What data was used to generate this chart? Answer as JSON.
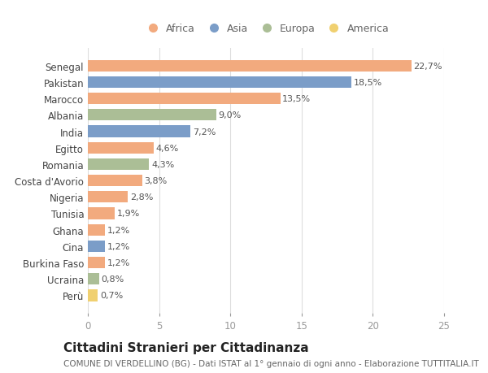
{
  "categories": [
    "Senegal",
    "Pakistan",
    "Marocco",
    "Albania",
    "India",
    "Egitto",
    "Romania",
    "Costa d'Avorio",
    "Nigeria",
    "Tunisia",
    "Ghana",
    "Cina",
    "Burkina Faso",
    "Ucraina",
    "Perù"
  ],
  "values": [
    22.7,
    18.5,
    13.5,
    9.0,
    7.2,
    4.6,
    4.3,
    3.8,
    2.8,
    1.9,
    1.2,
    1.2,
    1.2,
    0.8,
    0.7
  ],
  "labels": [
    "22,7%",
    "18,5%",
    "13,5%",
    "9,0%",
    "7,2%",
    "4,6%",
    "4,3%",
    "3,8%",
    "2,8%",
    "1,9%",
    "1,2%",
    "1,2%",
    "1,2%",
    "0,8%",
    "0,7%"
  ],
  "continents": [
    "Africa",
    "Asia",
    "Africa",
    "Europa",
    "Asia",
    "Africa",
    "Europa",
    "Africa",
    "Africa",
    "Africa",
    "Africa",
    "Asia",
    "Africa",
    "Europa",
    "America"
  ],
  "continent_colors": {
    "Africa": "#F2AA7E",
    "Asia": "#7B9DC8",
    "Europa": "#ABBE96",
    "America": "#F0D070"
  },
  "legend_order": [
    "Africa",
    "Asia",
    "Europa",
    "America"
  ],
  "title": "Cittadini Stranieri per Cittadinanza",
  "subtitle": "COMUNE DI VERDELLINO (BG) - Dati ISTAT al 1° gennaio di ogni anno - Elaborazione TUTTITALIA.IT",
  "xlim": [
    0,
    25
  ],
  "xticks": [
    0,
    5,
    10,
    15,
    20,
    25
  ],
  "background_color": "#ffffff",
  "bar_height": 0.7,
  "label_fontsize": 8,
  "ytick_fontsize": 8.5,
  "title_fontsize": 11,
  "subtitle_fontsize": 7.5
}
